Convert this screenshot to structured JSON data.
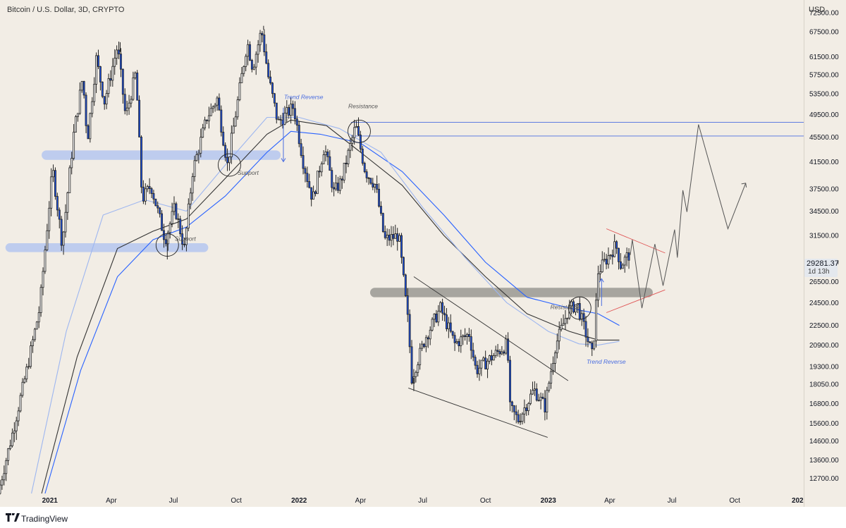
{
  "header": {
    "title": "Bitcoin / U.S. Dollar, 3D, CRYPTO",
    "currency": "USD"
  },
  "footer": {
    "brand": "TradingView"
  },
  "last_price": {
    "value": "29281.37",
    "countdown": "1d 13h"
  },
  "chart_data": {
    "type": "candlestick",
    "title": "Bitcoin / U.S. Dollar, 3D, CRYPTO",
    "y_scale": "log",
    "ylim": [
      12000,
      76000
    ],
    "xlim": [
      "2020-10-20",
      "2024-01-10"
    ],
    "y_ticks": [
      "72500.00",
      "67500.00",
      "61500.00",
      "57500.00",
      "53500.00",
      "49500.00",
      "45500.00",
      "41500.00",
      "37500.00",
      "34500.00",
      "31500.00",
      "28500.00",
      "26500.00",
      "24500.00",
      "22500.00",
      "20900.00",
      "19300.00",
      "18050.00",
      "16800.00",
      "15600.00",
      "14600.00",
      "13600.00",
      "12700.00"
    ],
    "x_ticks": [
      {
        "label": "2021",
        "date": "2021-01-01",
        "bold": true
      },
      {
        "label": "Apr",
        "date": "2021-04-01"
      },
      {
        "label": "Jul",
        "date": "2021-07-01"
      },
      {
        "label": "Oct",
        "date": "2021-10-01"
      },
      {
        "label": "2022",
        "date": "2022-01-01",
        "bold": true
      },
      {
        "label": "Apr",
        "date": "2022-04-01"
      },
      {
        "label": "Jul",
        "date": "2022-07-01"
      },
      {
        "label": "Oct",
        "date": "2022-10-01"
      },
      {
        "label": "2023",
        "date": "2023-01-01",
        "bold": true
      },
      {
        "label": "Apr",
        "date": "2023-04-01"
      },
      {
        "label": "Jul",
        "date": "2023-07-01"
      },
      {
        "label": "Oct",
        "date": "2023-10-01"
      },
      {
        "label": "202",
        "date": "2024-01-01",
        "bold": true
      }
    ],
    "price_path": [
      [
        "2020-10-20",
        12000
      ],
      [
        "2020-11-10",
        15000
      ],
      [
        "2020-12-01",
        19000
      ],
      [
        "2020-12-20",
        24000
      ],
      [
        "2021-01-08",
        40500
      ],
      [
        "2021-01-22",
        30500
      ],
      [
        "2021-02-08",
        46000
      ],
      [
        "2021-02-21",
        57000
      ],
      [
        "2021-02-28",
        45000
      ],
      [
        "2021-03-13",
        61000
      ],
      [
        "2021-03-25",
        52000
      ],
      [
        "2021-04-13",
        64000
      ],
      [
        "2021-04-25",
        49000
      ],
      [
        "2021-05-10",
        58000
      ],
      [
        "2021-05-19",
        36000
      ],
      [
        "2021-06-01",
        38000
      ],
      [
        "2021-06-22",
        31000
      ],
      [
        "2021-07-06",
        35000
      ],
      [
        "2021-07-20",
        30000
      ],
      [
        "2021-08-01",
        40000
      ],
      [
        "2021-08-22",
        49000
      ],
      [
        "2021-09-06",
        52500
      ],
      [
        "2021-09-21",
        41000
      ],
      [
        "2021-10-01",
        48000
      ],
      [
        "2021-10-20",
        65000
      ],
      [
        "2021-10-28",
        59000
      ],
      [
        "2021-11-10",
        68000
      ],
      [
        "2021-11-20",
        57000
      ],
      [
        "2021-12-04",
        48000
      ],
      [
        "2021-12-27",
        51000
      ],
      [
        "2022-01-10",
        41500
      ],
      [
        "2022-01-24",
        36000
      ],
      [
        "2022-02-10",
        44000
      ],
      [
        "2022-02-24",
        37000
      ],
      [
        "2022-03-06",
        38500
      ],
      [
        "2022-03-28",
        47500
      ],
      [
        "2022-04-11",
        40000
      ],
      [
        "2022-04-26",
        38000
      ],
      [
        "2022-05-09",
        31000
      ],
      [
        "2022-05-30",
        31500
      ],
      [
        "2022-06-13",
        22500
      ],
      [
        "2022-06-18",
        18500
      ],
      [
        "2022-07-08",
        21500
      ],
      [
        "2022-07-30",
        24000
      ],
      [
        "2022-08-20",
        21000
      ],
      [
        "2022-09-10",
        21800
      ],
      [
        "2022-09-20",
        19000
      ],
      [
        "2022-10-25",
        20500
      ],
      [
        "2022-11-05",
        21000
      ],
      [
        "2022-11-09",
        16500
      ],
      [
        "2022-11-21",
        15800
      ],
      [
        "2022-12-14",
        17700
      ],
      [
        "2022-12-30",
        16600
      ],
      [
        "2023-01-14",
        20800
      ],
      [
        "2023-02-02",
        23800
      ],
      [
        "2023-02-15",
        24400
      ],
      [
        "2023-03-10",
        20000
      ],
      [
        "2023-03-18",
        27500
      ],
      [
        "2023-04-13",
        30400
      ],
      [
        "2023-04-20",
        28200
      ],
      [
        "2023-05-01",
        29281
      ]
    ],
    "highs_lows": [
      [
        "2021-04-14",
        64900
      ],
      [
        "2021-11-10",
        69000
      ],
      [
        "2021-06-22",
        28800
      ],
      [
        "2022-11-21",
        15500
      ],
      [
        "2022-06-18",
        17600
      ]
    ],
    "moving_averages": [
      {
        "color": "#2962ff",
        "points": [
          [
            "2020-12-25",
            12000
          ],
          [
            "2021-02-15",
            19000
          ],
          [
            "2021-04-10",
            27000
          ],
          [
            "2021-06-01",
            31000
          ],
          [
            "2021-07-20",
            32500
          ],
          [
            "2021-09-15",
            36500
          ],
          [
            "2021-11-15",
            43000
          ],
          [
            "2021-12-20",
            46500
          ],
          [
            "2022-02-01",
            46000
          ],
          [
            "2022-04-01",
            44500
          ],
          [
            "2022-06-01",
            40000
          ],
          [
            "2022-08-01",
            34000
          ],
          [
            "2022-10-01",
            28500
          ],
          [
            "2022-12-01",
            25000
          ],
          [
            "2023-02-01",
            24000
          ],
          [
            "2023-03-15",
            23500
          ],
          [
            "2023-04-15",
            22500
          ]
        ]
      },
      {
        "color": "#333333",
        "points": [
          [
            "2020-12-20",
            12000
          ],
          [
            "2021-02-10",
            20000
          ],
          [
            "2021-04-10",
            30000
          ],
          [
            "2021-06-01",
            32000
          ],
          [
            "2021-07-20",
            33500
          ],
          [
            "2021-09-15",
            39000
          ],
          [
            "2021-11-15",
            46000
          ],
          [
            "2021-12-20",
            48500
          ],
          [
            "2022-02-10",
            47500
          ],
          [
            "2022-04-01",
            43000
          ],
          [
            "2022-06-01",
            38000
          ],
          [
            "2022-08-01",
            31500
          ],
          [
            "2022-10-01",
            27000
          ],
          [
            "2022-12-01",
            23500
          ],
          [
            "2023-02-01",
            22000
          ],
          [
            "2023-03-15",
            21300
          ],
          [
            "2023-04-15",
            21300
          ]
        ]
      },
      {
        "color": "#9db6f0",
        "points": [
          [
            "2020-12-05",
            12000
          ],
          [
            "2021-01-25",
            22000
          ],
          [
            "2021-03-20",
            34000
          ],
          [
            "2021-05-20",
            36000
          ],
          [
            "2021-07-20",
            34500
          ],
          [
            "2021-09-15",
            41000
          ],
          [
            "2021-11-15",
            49000
          ],
          [
            "2022-01-01",
            49000
          ],
          [
            "2022-03-01",
            47000
          ],
          [
            "2022-05-01",
            43000
          ],
          [
            "2022-07-01",
            35000
          ],
          [
            "2022-09-01",
            29000
          ],
          [
            "2022-11-01",
            24500
          ],
          [
            "2023-01-01",
            22000
          ],
          [
            "2023-02-15",
            21000
          ],
          [
            "2023-03-15",
            20900
          ],
          [
            "2023-04-15",
            21200
          ]
        ]
      }
    ],
    "zones": [
      {
        "color": "#b5c6f0",
        "from": "2020-12-20",
        "to": "2021-12-05",
        "low": 41800,
        "high": 43300
      },
      {
        "color": "#b5c6f0",
        "from": "2020-10-28",
        "to": "2021-08-21",
        "low": 29600,
        "high": 30600
      },
      {
        "color": "#9a9893",
        "from": "2022-04-15",
        "to": "2023-06-03",
        "low": 25000,
        "high": 25900
      }
    ],
    "h_lines": [
      {
        "price": 48100,
        "from": "2022-03-18",
        "to": "2024-01-10",
        "color": "#4a6de0"
      },
      {
        "price": 45700,
        "from": "2022-03-18",
        "to": "2024-01-10",
        "color": "#4a6de0"
      }
    ],
    "trendlines": [
      {
        "color": "#333333",
        "p1": [
          "2022-06-10",
          17800
        ],
        "p2": [
          "2022-12-31",
          14800
        ]
      },
      {
        "color": "#333333",
        "p1": [
          "2022-06-18",
          27000
        ],
        "p2": [
          "2023-01-30",
          18300
        ]
      },
      {
        "color": "#e05454",
        "p1": [
          "2023-03-27",
          32300
        ],
        "p2": [
          "2023-06-21",
          29500
        ]
      },
      {
        "color": "#e05454",
        "p1": [
          "2023-03-27",
          23600
        ],
        "p2": [
          "2023-06-21",
          25700
        ]
      }
    ],
    "projection": [
      [
        "2023-05-01",
        29281
      ],
      [
        "2023-05-04",
        31000
      ],
      [
        "2023-05-18",
        24000
      ],
      [
        "2023-06-06",
        30500
      ],
      [
        "2023-06-18",
        26100
      ],
      [
        "2023-07-05",
        32200
      ],
      [
        "2023-07-09",
        29000
      ],
      [
        "2023-07-17",
        37300
      ],
      [
        "2023-07-23",
        34400
      ],
      [
        "2023-08-09",
        47700
      ],
      [
        "2023-09-21",
        32300
      ],
      [
        "2023-10-17",
        38300
      ]
    ],
    "circles": [
      {
        "date": "2021-09-21",
        "price": 41000
      },
      {
        "date": "2021-06-22",
        "price": 30400
      },
      {
        "date": "2022-03-30",
        "price": 46500
      },
      {
        "date": "2023-02-16",
        "price": 24000
      }
    ],
    "arrows": [
      {
        "date": "2021-12-09",
        "from": 50800,
        "to": 41500
      },
      {
        "date": "2023-03-20",
        "from": 24200,
        "to": 26800
      }
    ],
    "annotations": [
      {
        "text": "Trend Reverse",
        "date": "2021-12-10",
        "price": 52500,
        "color": "#4a6de0"
      },
      {
        "text": "Resistance",
        "date": "2022-03-14",
        "price": 50700,
        "color": "#555555"
      },
      {
        "text": "Support",
        "date": "2021-10-03",
        "price": 39500,
        "color": "#555555"
      },
      {
        "text": "Support",
        "date": "2021-07-03",
        "price": 30900,
        "color": "#555555"
      },
      {
        "text": "Resistance",
        "date": "2023-01-04",
        "price": 23900,
        "color": "#555555"
      },
      {
        "text": "Trend Reverse",
        "date": "2023-02-26",
        "price": 19500,
        "color": "#4a6de0"
      }
    ],
    "colors": {
      "up": "#ffffff",
      "down": "#1e53e5",
      "wick": "#222222",
      "background": "#f2ede5"
    }
  }
}
